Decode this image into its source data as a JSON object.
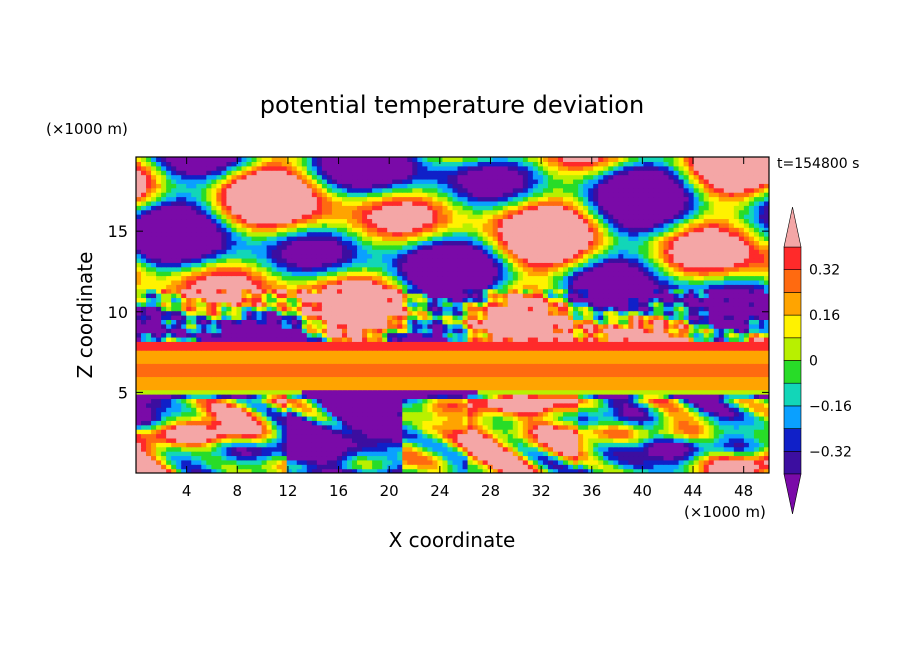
{
  "chart_data": {
    "type": "heatmap",
    "title": "potential temperature deviation",
    "time_label": "t=154800 s",
    "xlabel": "X coordinate",
    "ylabel": "Z coordinate",
    "x_unit": "(×1000 m)",
    "y_unit": "(×1000 m)",
    "xlim": [
      0,
      50
    ],
    "ylim": [
      0,
      19.6
    ],
    "x_ticks": [
      "4",
      "8",
      "12",
      "16",
      "20",
      "24",
      "28",
      "32",
      "36",
      "40",
      "44",
      "48"
    ],
    "y_ticks": [
      "5",
      "10",
      "15"
    ],
    "colorbar": {
      "levels": [
        -0.4,
        -0.32,
        -0.24,
        -0.16,
        -0.08,
        0,
        0.08,
        0.16,
        0.24,
        0.32,
        0.4
      ],
      "tick_labels": [
        "0.32",
        "0.16",
        "0",
        "−0.16",
        "−0.32"
      ],
      "tick_values": [
        0.32,
        0.16,
        0,
        -0.16,
        -0.32
      ],
      "colors": [
        "#7a0aa8",
        "#3c0ea0",
        "#1020c8",
        "#0aa0ff",
        "#12d6b8",
        "#28dc28",
        "#b8f000",
        "#fff200",
        "#ffa400",
        "#ff6a10",
        "#ff2a2a",
        "#f4a6a6"
      ]
    },
    "bands": [
      {
        "z_from": 7.6,
        "z_to": 8.3,
        "value": 0.32
      },
      {
        "z_from": 6.7,
        "z_to": 7.6,
        "value": 0.16
      },
      {
        "z_from": 6.0,
        "z_to": 6.7,
        "value": 0.24
      },
      {
        "z_from": 5.3,
        "z_to": 6.0,
        "value": 0.16
      }
    ]
  }
}
